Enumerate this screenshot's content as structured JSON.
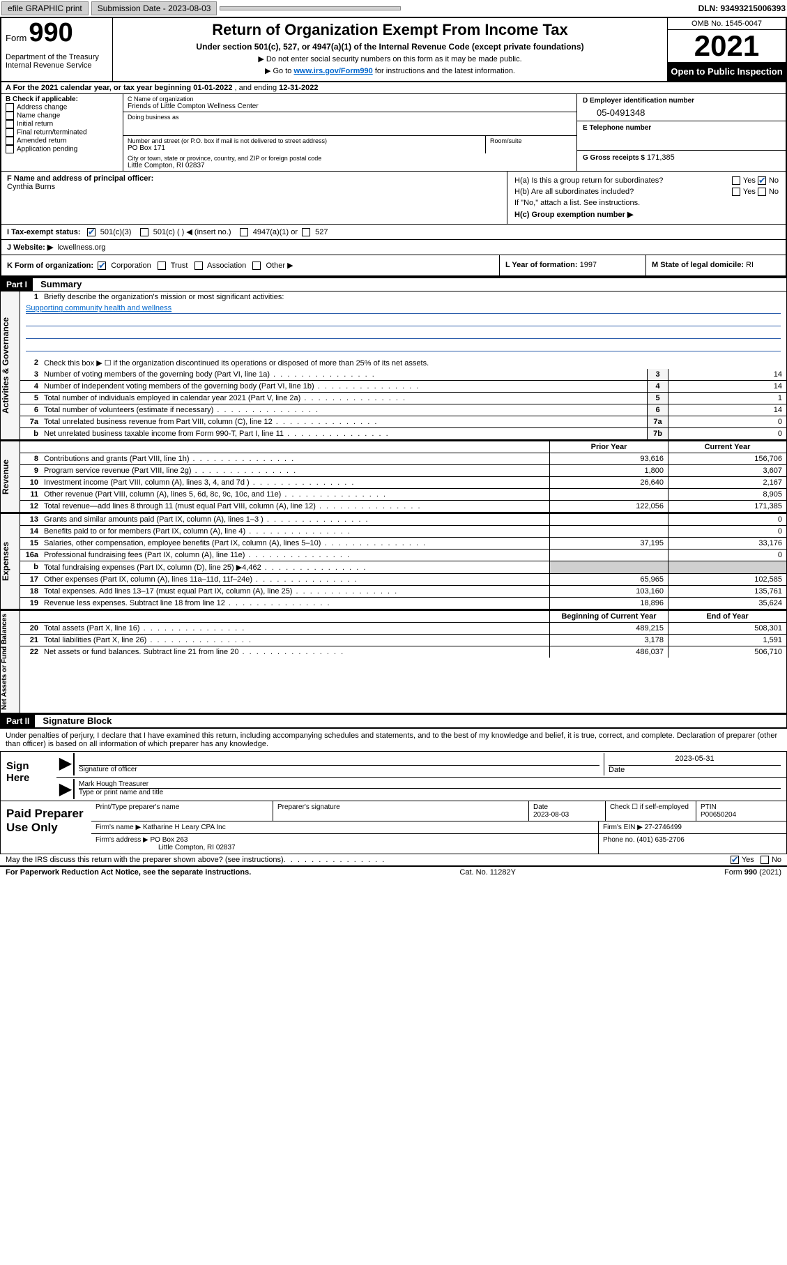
{
  "topbar": {
    "efile": "efile GRAPHIC print",
    "submission_label": "Submission Date - 2023-08-03",
    "dln": "DLN: 93493215006393"
  },
  "header": {
    "form_label": "Form",
    "form_num": "990",
    "dept": "Department of the Treasury\nInternal Revenue Service",
    "title": "Return of Organization Exempt From Income Tax",
    "subtitle": "Under section 501(c), 527, or 4947(a)(1) of the Internal Revenue Code (except private foundations)",
    "note1": "▶ Do not enter social security numbers on this form as it may be made public.",
    "note2_prefix": "▶ Go to ",
    "note2_link": "www.irs.gov/Form990",
    "note2_suffix": " for instructions and the latest information.",
    "omb": "OMB No. 1545-0047",
    "year": "2021",
    "inspection": "Open to Public Inspection"
  },
  "rowA": {
    "text_prefix": "A For the 2021 calendar year, or tax year beginning ",
    "begin": "01-01-2022",
    "mid": " , and ending ",
    "end": "12-31-2022"
  },
  "colB": {
    "header": "B Check if applicable:",
    "items": [
      "Address change",
      "Name change",
      "Initial return",
      "Final return/terminated",
      "Amended return",
      "Application pending"
    ]
  },
  "colC": {
    "name_lbl": "C Name of organization",
    "name": "Friends of Little Compton Wellness Center",
    "dba_lbl": "Doing business as",
    "dba": "",
    "addr_lbl": "Number and street (or P.O. box if mail is not delivered to street address)",
    "room_lbl": "Room/suite",
    "addr": "PO Box 171",
    "city_lbl": "City or town, state or province, country, and ZIP or foreign postal code",
    "city": "Little Compton, RI  02837"
  },
  "colD": {
    "lbl": "D Employer identification number",
    "val": "05-0491348"
  },
  "colE": {
    "lbl": "E Telephone number",
    "val": ""
  },
  "colG": {
    "lbl": "G Gross receipts $",
    "val": "171,385"
  },
  "colF": {
    "lbl": "F Name and address of principal officer:",
    "val": "Cynthia Burns"
  },
  "colH": {
    "ha": "H(a)  Is this a group return for subordinates?",
    "ha_yes": "Yes",
    "ha_no": "No",
    "hb": "H(b)  Are all subordinates included?",
    "hb_note": "If \"No,\" attach a list. See instructions.",
    "hc": "H(c)  Group exemption number ▶"
  },
  "rowI": {
    "lbl": "I   Tax-exempt status:",
    "opts": [
      "501(c)(3)",
      "501(c) (  ) ◀ (insert no.)",
      "4947(a)(1) or",
      "527"
    ]
  },
  "rowJ": {
    "lbl": "J   Website: ▶",
    "val": "lcwellness.org"
  },
  "rowK": {
    "lbl": "K Form of organization:",
    "opts": [
      "Corporation",
      "Trust",
      "Association",
      "Other ▶"
    ]
  },
  "rowL": {
    "lbl": "L Year of formation:",
    "val": "1997"
  },
  "rowM": {
    "lbl": "M State of legal domicile:",
    "val": "RI"
  },
  "part1": {
    "hdr": "Part I",
    "title": "Summary"
  },
  "summary": {
    "line1_lbl": "Briefly describe the organization's mission or most significant activities:",
    "line1_val": "Supporting community health and wellness",
    "line2": "Check this box ▶ ☐ if the organization discontinued its operations or disposed of more than 25% of its net assets.",
    "lines_gov": [
      {
        "n": "3",
        "t": "Number of voting members of the governing body (Part VI, line 1a)",
        "box": "3",
        "v": "14"
      },
      {
        "n": "4",
        "t": "Number of independent voting members of the governing body (Part VI, line 1b)",
        "box": "4",
        "v": "14"
      },
      {
        "n": "5",
        "t": "Total number of individuals employed in calendar year 2021 (Part V, line 2a)",
        "box": "5",
        "v": "1"
      },
      {
        "n": "6",
        "t": "Total number of volunteers (estimate if necessary)",
        "box": "6",
        "v": "14"
      },
      {
        "n": "7a",
        "t": "Total unrelated business revenue from Part VIII, column (C), line 12",
        "box": "7a",
        "v": "0"
      },
      {
        "n": "b",
        "t": "Net unrelated business taxable income from Form 990-T, Part I, line 11",
        "box": "7b",
        "v": "0"
      }
    ],
    "col_prior": "Prior Year",
    "col_current": "Current Year",
    "lines_rev": [
      {
        "n": "8",
        "t": "Contributions and grants (Part VIII, line 1h)",
        "p": "93,616",
        "c": "156,706"
      },
      {
        "n": "9",
        "t": "Program service revenue (Part VIII, line 2g)",
        "p": "1,800",
        "c": "3,607"
      },
      {
        "n": "10",
        "t": "Investment income (Part VIII, column (A), lines 3, 4, and 7d )",
        "p": "26,640",
        "c": "2,167"
      },
      {
        "n": "11",
        "t": "Other revenue (Part VIII, column (A), lines 5, 6d, 8c, 9c, 10c, and 11e)",
        "p": "",
        "c": "8,905"
      },
      {
        "n": "12",
        "t": "Total revenue—add lines 8 through 11 (must equal Part VIII, column (A), line 12)",
        "p": "122,056",
        "c": "171,385"
      }
    ],
    "lines_exp": [
      {
        "n": "13",
        "t": "Grants and similar amounts paid (Part IX, column (A), lines 1–3 )",
        "p": "",
        "c": "0"
      },
      {
        "n": "14",
        "t": "Benefits paid to or for members (Part IX, column (A), line 4)",
        "p": "",
        "c": "0"
      },
      {
        "n": "15",
        "t": "Salaries, other compensation, employee benefits (Part IX, column (A), lines 5–10)",
        "p": "37,195",
        "c": "33,176"
      },
      {
        "n": "16a",
        "t": "Professional fundraising fees (Part IX, column (A), line 11e)",
        "p": "",
        "c": "0"
      },
      {
        "n": "b",
        "t": "Total fundraising expenses (Part IX, column (D), line 25) ▶4,462",
        "p": "GRAY",
        "c": "GRAY"
      },
      {
        "n": "17",
        "t": "Other expenses (Part IX, column (A), lines 11a–11d, 11f–24e)",
        "p": "65,965",
        "c": "102,585"
      },
      {
        "n": "18",
        "t": "Total expenses. Add lines 13–17 (must equal Part IX, column (A), line 25)",
        "p": "103,160",
        "c": "135,761"
      },
      {
        "n": "19",
        "t": "Revenue less expenses. Subtract line 18 from line 12",
        "p": "18,896",
        "c": "35,624"
      }
    ],
    "col_begin": "Beginning of Current Year",
    "col_end": "End of Year",
    "lines_net": [
      {
        "n": "20",
        "t": "Total assets (Part X, line 16)",
        "p": "489,215",
        "c": "508,301"
      },
      {
        "n": "21",
        "t": "Total liabilities (Part X, line 26)",
        "p": "3,178",
        "c": "1,591"
      },
      {
        "n": "22",
        "t": "Net assets or fund balances. Subtract line 21 from line 20",
        "p": "486,037",
        "c": "506,710"
      }
    ],
    "vtabs": [
      "Activities & Governance",
      "Revenue",
      "Expenses",
      "Net Assets or Fund Balances"
    ]
  },
  "part2": {
    "hdr": "Part II",
    "title": "Signature Block"
  },
  "sig": {
    "declaration": "Under penalties of perjury, I declare that I have examined this return, including accompanying schedules and statements, and to the best of my knowledge and belief, it is true, correct, and complete. Declaration of preparer (other than officer) is based on all information of which preparer has any knowledge.",
    "sign_here": "Sign Here",
    "sig_lbl": "Signature of officer",
    "date_lbl": "Date",
    "date_val": "2023-05-31",
    "name_lbl": "Type or print name and title",
    "name_val": "Mark Hough Treasurer"
  },
  "prep": {
    "title": "Paid Preparer Use Only",
    "hdr": [
      "Print/Type preparer's name",
      "Preparer's signature",
      "Date",
      "",
      "PTIN"
    ],
    "date": "2023-08-03",
    "check_lbl": "Check ☐ if self-employed",
    "ptin": "P00650204",
    "firm_name_lbl": "Firm's name    ▶",
    "firm_name": "Katharine H Leary CPA Inc",
    "firm_ein_lbl": "Firm's EIN ▶",
    "firm_ein": "27-2746499",
    "firm_addr_lbl": "Firm's address ▶",
    "firm_addr1": "PO Box 263",
    "firm_addr2": "Little Compton, RI  02837",
    "phone_lbl": "Phone no.",
    "phone": "(401) 635-2706"
  },
  "footer": {
    "may_discuss": "May the IRS discuss this return with the preparer shown above? (see instructions)",
    "yes": "Yes",
    "no": "No",
    "paperwork": "For Paperwork Reduction Act Notice, see the separate instructions.",
    "cat": "Cat. No. 11282Y",
    "form": "Form 990 (2021)"
  }
}
